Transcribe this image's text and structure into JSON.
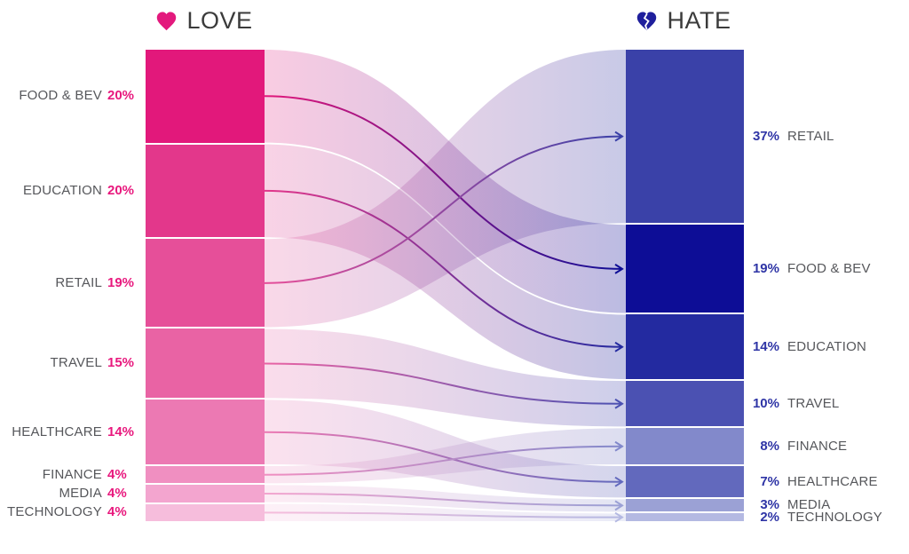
{
  "header": {
    "love": {
      "label": "LOVE",
      "icon": "heart-icon",
      "icon_color": "#E3197D",
      "text_color": "#3B3B3B"
    },
    "hate": {
      "label": "HATE",
      "icon": "broken-heart-icon",
      "icon_color": "#1F1F9C",
      "text_color": "#3B3B3B"
    }
  },
  "colors": {
    "love_accent": "#E8187D",
    "hate_accent": "#2F35A6",
    "label_text": "#56575B",
    "background": "#FFFFFF"
  },
  "chart_data": {
    "type": "sankey",
    "left_title": "LOVE",
    "right_title": "HATE",
    "left_unit": "%",
    "right_unit": "%",
    "categories": [
      {
        "name": "FOOD & BEV",
        "love_pct": 20,
        "hate_pct": 19,
        "love_color": "#E2187B",
        "hate_color": "#0D0D96"
      },
      {
        "name": "EDUCATION",
        "love_pct": 20,
        "hate_pct": 14,
        "love_color": "#E3378B",
        "hate_color": "#232AA0"
      },
      {
        "name": "RETAIL",
        "love_pct": 19,
        "hate_pct": 37,
        "love_color": "#E64F99",
        "hate_color": "#3A41A8"
      },
      {
        "name": "TRAVEL",
        "love_pct": 15,
        "hate_pct": 10,
        "love_color": "#E963A4",
        "hate_color": "#4B51B2"
      },
      {
        "name": "HEALTHCARE",
        "love_pct": 14,
        "hate_pct": 7,
        "love_color": "#EC79B3",
        "hate_color": "#6269BD"
      },
      {
        "name": "FINANCE",
        "love_pct": 4,
        "hate_pct": 8,
        "love_color": "#F08FC1",
        "hate_color": "#8289CB"
      },
      {
        "name": "MEDIA",
        "love_pct": 4,
        "hate_pct": 3,
        "love_color": "#F3A5CF",
        "hate_color": "#9BA1D5"
      },
      {
        "name": "TECHNOLOGY",
        "love_pct": 4,
        "hate_pct": 2,
        "love_color": "#F6BDDC",
        "hate_color": "#B4B9E2"
      }
    ],
    "hate_order": [
      "RETAIL",
      "FOOD & BEV",
      "EDUCATION",
      "TRAVEL",
      "FINANCE",
      "HEALTHCARE",
      "MEDIA",
      "TECHNOLOGY"
    ]
  }
}
